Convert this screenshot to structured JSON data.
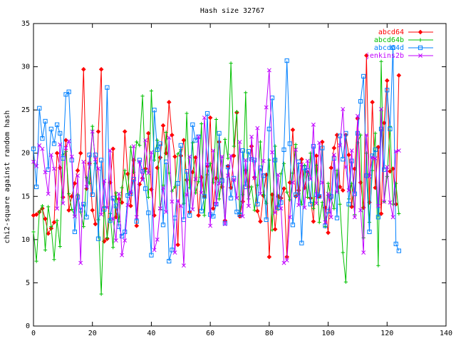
{
  "chart_data": {
    "type": "line",
    "title": "Hash size 32767",
    "xlabel": "",
    "ylabel": "chi2-square against random hash",
    "xlim": [
      0,
      140
    ],
    "ylim": [
      0,
      35
    ],
    "xticks": [
      0,
      20,
      40,
      60,
      80,
      100,
      120,
      140
    ],
    "yticks": [
      0,
      5,
      10,
      15,
      20,
      25,
      30,
      35
    ],
    "grid": false,
    "legend_position": "top-right",
    "series": [
      {
        "name": "abcd64",
        "color": "#ff0000",
        "marker": "diamond",
        "values": [
          12.8,
          12.9,
          13.2,
          13.6,
          12.4,
          10.7,
          11.3,
          12.0,
          20.0,
          18.3,
          14.9,
          21.5,
          13.4,
          15.0,
          16.5,
          18.0,
          20.0,
          29.7,
          15.9,
          18.8,
          13.4,
          11.8,
          22.5,
          29.7,
          9.8,
          10.1,
          16.6,
          20.5,
          12.6,
          14.7,
          14.3,
          22.5,
          17.6,
          13.9,
          19.2,
          11.6,
          16.4,
          17.1,
          18.2,
          22.3,
          15.8,
          12.8,
          18.3,
          19.5,
          23.2,
          20.0,
          25.9,
          22.1,
          19.6,
          9.4,
          19.7,
          21.5,
          16.9,
          13.2,
          17.8,
          19.5,
          12.8,
          17.2,
          15.0,
          18.5,
          24.1,
          13.6,
          17.1,
          21.3,
          16.1,
          12.2,
          18.5,
          16.0,
          19.7,
          24.7,
          12.7,
          14.4,
          18.0,
          16.1,
          20.8,
          17.2,
          13.3,
          12.1,
          15.1,
          17.5,
          8.0,
          15.2,
          11.2,
          15.0,
          14.8,
          15.9,
          8.0,
          16.6,
          22.7,
          15.0,
          15.7,
          19.3,
          16.0,
          17.8,
          14.8,
          12.1,
          19.7,
          15.0,
          21.3,
          13.7,
          10.8,
          18.3,
          20.6,
          22.1,
          16.1,
          15.7,
          22.1,
          19.8,
          13.8,
          18.2,
          24.0,
          16.6,
          13.7,
          31.3,
          14.3,
          25.9,
          16.0,
          20.7,
          13.0,
          23.5,
          28.4,
          17.9,
          18.2,
          14.1,
          29.0
        ]
      },
      {
        "name": "abcd64b",
        "color": "#00c000",
        "marker": "plus",
        "values": [
          10.9,
          7.5,
          13.2,
          13.9,
          8.8,
          13.8,
          11.5,
          7.7,
          12.2,
          9.2,
          19.8,
          20.2,
          15.3,
          13.5,
          12.8,
          15.2,
          13.2,
          11.5,
          17.2,
          16.5,
          23.1,
          18.8,
          12.3,
          3.7,
          13.8,
          10.2,
          13.0,
          9.1,
          15.4,
          12.1,
          16.0,
          18.0,
          15.3,
          20.7,
          17.8,
          21.3,
          20.9,
          26.6,
          17.9,
          14.9,
          27.2,
          19.2,
          21.5,
          13.5,
          16.3,
          22.4,
          17.7,
          15.6,
          16.1,
          19.9,
          20.4,
          14.2,
          24.6,
          16.0,
          21.2,
          15.4,
          16.7,
          23.4,
          12.8,
          17.5,
          18.8,
          16.6,
          23.9,
          14.7,
          17.1,
          21.6,
          19.4,
          30.4,
          20.8,
          24.8,
          13.0,
          15.2,
          27.0,
          14.7,
          16.1,
          13.4,
          16.3,
          21.3,
          15.2,
          14.2,
          19.2,
          11.1,
          20.8,
          13.5,
          17.6,
          18.8,
          15.5,
          14.6,
          17.7,
          21.0,
          15.3,
          14.1,
          18.6,
          14.9,
          20.0,
          13.6,
          18.6,
          12.0,
          14.3,
          11.5,
          16.5,
          14.8,
          13.6,
          18.0,
          14.1,
          8.5,
          5.1,
          14.7,
          16.5,
          12.9,
          21.2,
          22.1,
          10.2,
          20.0,
          12.0,
          18.0,
          22.3,
          7.0,
          30.6,
          14.4,
          17.3,
          23.1,
          14.1,
          16.5,
          13.0
        ]
      },
      {
        "name": "abcd64d",
        "color": "#0080ff",
        "marker": "square",
        "values": [
          20.5,
          16.1,
          25.2,
          21.7,
          23.7,
          18.1,
          22.8,
          21.1,
          23.3,
          22.3,
          19.4,
          26.8,
          27.1,
          19.2,
          10.9,
          14.9,
          13.4,
          14.1,
          12.6,
          19.8,
          15.2,
          19.8,
          10.1,
          19.2,
          13.5,
          27.6,
          12.2,
          14.8,
          13.9,
          11.5,
          10.4,
          10.9,
          15.1,
          15.3,
          17.0,
          12.1,
          19.2,
          17.9,
          15.9,
          13.1,
          8.2,
          25.0,
          20.4,
          21.1,
          11.7,
          19.0,
          7.5,
          8.8,
          12.5,
          16.5,
          20.9,
          12.3,
          17.9,
          12.8,
          23.3,
          21.5,
          21.9,
          13.3,
          15.0,
          24.6,
          12.9,
          12.7,
          14.1,
          22.3,
          16.8,
          11.9,
          18.4,
          14.8,
          17.1,
          13.2,
          12.9,
          20.3,
          16.1,
          20.2,
          19.3,
          19.2,
          14.1,
          18.3,
          17.4,
          12.3,
          22.8,
          26.4,
          19.2,
          13.7,
          14.3,
          20.4,
          30.7,
          21.1,
          11.7,
          15.2,
          19.0,
          9.6,
          18.3,
          18.0,
          14.1,
          20.8,
          15.2,
          15.0,
          20.6,
          11.6,
          13.3,
          15.0,
          19.4,
          12.5,
          22.0,
          19.3,
          22.3,
          14.1,
          19.1,
          15.3,
          22.3,
          26.0,
          28.9,
          17.4,
          10.9,
          19.7,
          20.4,
          12.6,
          22.8,
          18.1,
          27.3,
          22.8,
          32.2,
          9.5,
          8.7
        ]
      },
      {
        "name": "jenkins2b",
        "color": "#c000ff",
        "marker": "cross",
        "values": [
          19.0,
          18.5,
          20.9,
          20.5,
          17.8,
          15.3,
          19.8,
          18.2,
          13.6,
          21.0,
          14.2,
          20.6,
          21.4,
          19.6,
          12.7,
          17.4,
          7.3,
          19.0,
          16.1,
          18.8,
          22.5,
          19.3,
          18.2,
          12.9,
          16.8,
          13.7,
          20.3,
          12.4,
          9.9,
          15.3,
          8.2,
          9.9,
          14.0,
          15.5,
          20.8,
          12.6,
          19.0,
          16.9,
          21.5,
          17.7,
          20.1,
          8.8,
          10.0,
          13.6,
          16.0,
          13.2,
          21.8,
          14.4,
          8.5,
          14.5,
          13.9,
          7.0,
          15.2,
          19.6,
          13.5,
          17.0,
          21.9,
          15.4,
          24.1,
          18.7,
          11.6,
          20.3,
          14.1,
          16.5,
          19.6,
          11.8,
          17.4,
          19.7,
          16.9,
          14.8,
          21.3,
          12.7,
          19.2,
          13.9,
          21.9,
          17.1,
          22.9,
          15.3,
          19.1,
          25.3,
          29.6,
          20.1,
          13.1,
          17.5,
          13.6,
          7.3,
          7.6,
          12.6,
          16.6,
          20.4,
          14.0,
          18.7,
          13.7,
          19.1,
          17.0,
          23.3,
          14.2,
          21.2,
          16.6,
          12.0,
          15.3,
          12.6,
          19.8,
          15.5,
          20.9,
          25.1,
          18.4,
          15.7,
          20.3,
          12.6,
          24.3,
          13.4,
          8.5,
          22.1,
          17.3,
          19.5,
          19.4,
          13.9,
          25.1,
          14.4,
          18.4,
          14.3,
          12.6,
          20.2,
          20.3
        ]
      }
    ]
  }
}
